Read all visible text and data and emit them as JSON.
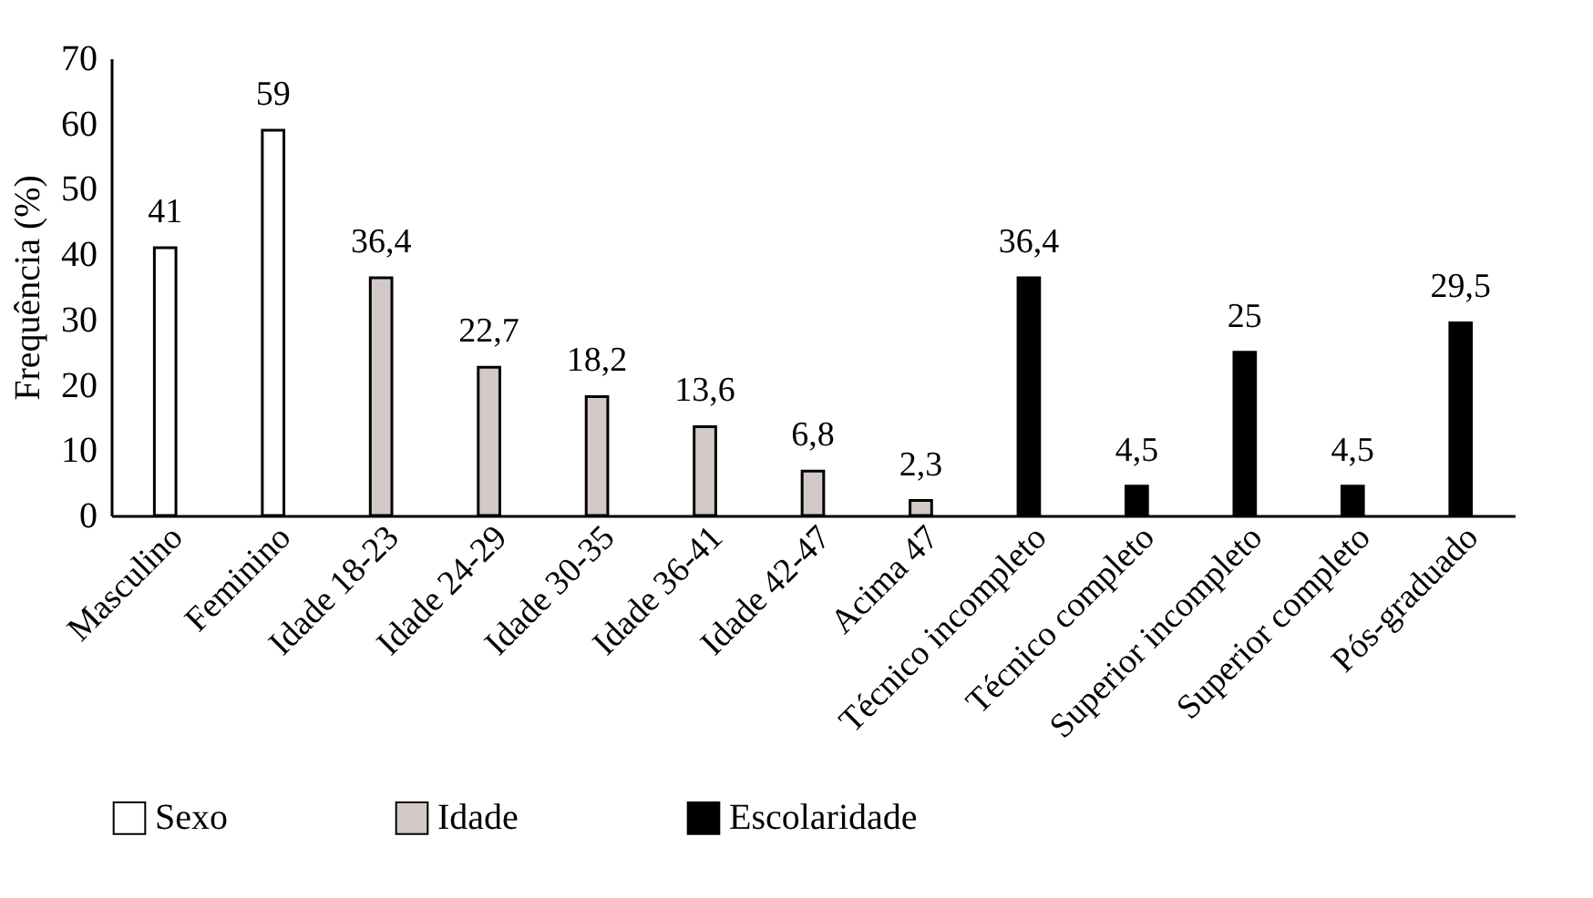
{
  "chart_data": {
    "type": "bar",
    "ylabel": "Frequência (%)",
    "categories": [
      "Masculino",
      "Feminino",
      "Idade 18-23",
      "Idade 24-29",
      "Idade 30-35",
      "Idade 36-41",
      "Idade 42-47",
      "Acima 47",
      "Técnico incompleto",
      "Técnico completo",
      "Superior incompleto",
      "Superior completo",
      "Pós-graduado"
    ],
    "series": [
      {
        "name": "Sexo",
        "color": "#ffffff",
        "values": [
          41,
          59,
          null,
          null,
          null,
          null,
          null,
          null,
          null,
          null,
          null,
          null,
          null
        ],
        "value_labels": [
          "41",
          "59",
          null,
          null,
          null,
          null,
          null,
          null,
          null,
          null,
          null,
          null,
          null
        ]
      },
      {
        "name": "Idade",
        "color": "#d3c9c7",
        "values": [
          null,
          null,
          36.4,
          22.7,
          18.2,
          13.6,
          6.8,
          2.3,
          null,
          null,
          null,
          null,
          null
        ],
        "value_labels": [
          null,
          null,
          "36,4",
          "22,7",
          "18,2",
          "13,6",
          "6,8",
          "2,3",
          null,
          null,
          null,
          null,
          null
        ]
      },
      {
        "name": "Escolaridade",
        "color": "#000000",
        "values": [
          null,
          null,
          null,
          null,
          null,
          null,
          null,
          null,
          36.4,
          4.5,
          25,
          4.5,
          29.5
        ],
        "value_labels": [
          null,
          null,
          null,
          null,
          null,
          null,
          null,
          null,
          "36,4",
          "4,5",
          "25",
          "4,5",
          "29,5"
        ]
      }
    ],
    "ylim": [
      0,
      70
    ],
    "yticks": [
      0,
      10,
      20,
      30,
      40,
      50,
      60,
      70
    ],
    "legend": "bottom"
  }
}
